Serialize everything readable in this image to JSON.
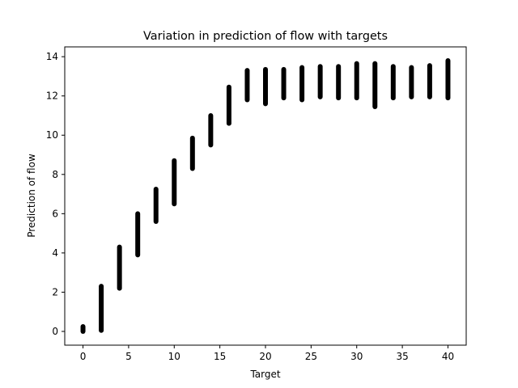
{
  "chart_data": {
    "type": "scatter",
    "title": "Variation in prediction of flow with targets",
    "xlabel": "Target",
    "ylabel": "Prediction of flow",
    "xlim": [
      -2,
      42
    ],
    "ylim": [
      -0.7,
      14.5
    ],
    "xticks": [
      0,
      5,
      10,
      15,
      20,
      25,
      30,
      35,
      40
    ],
    "yticks": [
      0,
      2,
      4,
      6,
      8,
      10,
      12,
      14
    ],
    "grid": false,
    "marker_color": "#000000",
    "bands": [
      {
        "x": 0,
        "y_min": 0.0,
        "y_max": 0.25
      },
      {
        "x": 2,
        "y_min": 0.05,
        "y_max": 2.3
      },
      {
        "x": 4,
        "y_min": 2.2,
        "y_max": 4.3
      },
      {
        "x": 6,
        "y_min": 3.9,
        "y_max": 6.0
      },
      {
        "x": 8,
        "y_min": 5.6,
        "y_max": 7.25
      },
      {
        "x": 10,
        "y_min": 6.5,
        "y_max": 8.7
      },
      {
        "x": 12,
        "y_min": 8.3,
        "y_max": 9.85
      },
      {
        "x": 14,
        "y_min": 9.5,
        "y_max": 11.0
      },
      {
        "x": 16,
        "y_min": 10.6,
        "y_max": 12.45
      },
      {
        "x": 18,
        "y_min": 11.8,
        "y_max": 13.3
      },
      {
        "x": 20,
        "y_min": 11.6,
        "y_max": 13.35
      },
      {
        "x": 22,
        "y_min": 11.9,
        "y_max": 13.35
      },
      {
        "x": 24,
        "y_min": 11.8,
        "y_max": 13.45
      },
      {
        "x": 26,
        "y_min": 11.95,
        "y_max": 13.5
      },
      {
        "x": 28,
        "y_min": 11.9,
        "y_max": 13.5
      },
      {
        "x": 30,
        "y_min": 11.9,
        "y_max": 13.65
      },
      {
        "x": 32,
        "y_min": 11.45,
        "y_max": 13.65
      },
      {
        "x": 34,
        "y_min": 11.9,
        "y_max": 13.5
      },
      {
        "x": 36,
        "y_min": 11.95,
        "y_max": 13.45
      },
      {
        "x": 38,
        "y_min": 11.95,
        "y_max": 13.55
      },
      {
        "x": 40,
        "y_min": 11.9,
        "y_max": 13.8
      }
    ]
  }
}
